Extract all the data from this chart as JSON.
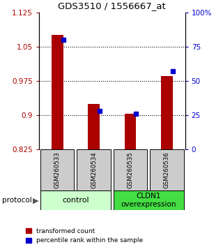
{
  "title": "GDS3510 / 1556667_at",
  "samples": [
    "GSM260533",
    "GSM260534",
    "GSM260535",
    "GSM260536"
  ],
  "red_values": [
    1.075,
    0.925,
    0.903,
    0.985
  ],
  "blue_values": [
    80,
    28,
    26,
    57
  ],
  "ylim_left": [
    0.825,
    1.125
  ],
  "ylim_right": [
    0,
    100
  ],
  "yticks_left": [
    0.825,
    0.9,
    0.975,
    1.05,
    1.125
  ],
  "yticks_right": [
    0,
    25,
    50,
    75,
    100
  ],
  "ytick_labels_right": [
    "0",
    "25",
    "50",
    "75",
    "100%"
  ],
  "hlines": [
    1.05,
    0.975,
    0.9
  ],
  "group1_label": "control",
  "group2_label": "CLDN1\noverexpression",
  "protocol_label": "protocol",
  "legend1": "transformed count",
  "legend2": "percentile rank within the sample",
  "red_color": "#aa0000",
  "blue_color": "#0000cc",
  "group_bg1": "#ccffcc",
  "group_bg2": "#44dd44",
  "sample_bg": "#cccccc"
}
